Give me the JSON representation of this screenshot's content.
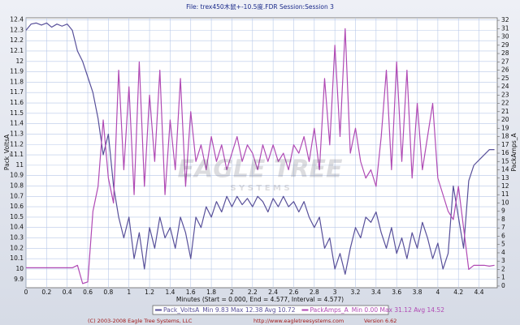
{
  "chart_data": {
    "type": "line",
    "title": "File: trex450木鼠+-10.5度.FDR   Session:Session 3",
    "x_label": "Minutes (Start = 0.000, End = 4.577, Interval = 4.577)",
    "y_label": "Pack_VoltsA",
    "y2_label": "PackAmps_A",
    "watermark": [
      "EAGLE TREE",
      "S Y S T E M S"
    ],
    "footer": [
      "(C) 2003-2008 Eagle Tree Systems, LLC",
      "http://www.eagletreesystems.com",
      "Version 6.62"
    ],
    "grid": true,
    "xlim": [
      0,
      4.577
    ],
    "ylim": [
      9.82,
      12.42
    ],
    "y2lim": [
      -0.2,
      32.3
    ],
    "xticks": [
      0,
      0.2,
      0.4,
      0.6,
      0.8,
      1,
      1.2,
      1.4,
      1.6,
      1.8,
      2,
      2.2,
      2.4,
      2.6,
      2.8,
      3,
      3.2,
      3.4,
      3.6,
      3.8,
      4,
      4.2,
      4.4
    ],
    "yticks": [
      9.9,
      10,
      10.1,
      10.2,
      10.3,
      10.4,
      10.5,
      10.6,
      10.7,
      10.8,
      10.9,
      11,
      11.1,
      11.2,
      11.3,
      11.4,
      11.5,
      11.6,
      11.7,
      11.8,
      11.9,
      12,
      12.1,
      12.2,
      12.3,
      12.4
    ],
    "y2ticks": [
      0,
      1,
      2,
      3,
      4,
      5,
      6,
      7,
      8,
      9,
      10,
      11,
      12,
      13,
      14,
      15,
      16,
      17,
      18,
      19,
      20,
      21,
      22,
      23,
      24,
      25,
      26,
      27,
      28,
      29,
      30,
      31,
      32
    ],
    "x": [
      0,
      0.05,
      0.1,
      0.15,
      0.2,
      0.25,
      0.3,
      0.35,
      0.4,
      0.45,
      0.5,
      0.55,
      0.6,
      0.65,
      0.7,
      0.75,
      0.8,
      0.85,
      0.9,
      0.95,
      1,
      1.05,
      1.1,
      1.15,
      1.2,
      1.25,
      1.3,
      1.35,
      1.4,
      1.45,
      1.5,
      1.55,
      1.6,
      1.65,
      1.7,
      1.75,
      1.8,
      1.85,
      1.9,
      1.95,
      2,
      2.05,
      2.1,
      2.15,
      2.2,
      2.25,
      2.3,
      2.35,
      2.4,
      2.45,
      2.5,
      2.55,
      2.6,
      2.65,
      2.7,
      2.75,
      2.8,
      2.85,
      2.9,
      2.95,
      3,
      3.05,
      3.1,
      3.15,
      3.2,
      3.25,
      3.3,
      3.35,
      3.4,
      3.45,
      3.5,
      3.55,
      3.6,
      3.65,
      3.7,
      3.75,
      3.8,
      3.85,
      3.9,
      3.95,
      4,
      4.05,
      4.1,
      4.15,
      4.2,
      4.25,
      4.3,
      4.35,
      4.4,
      4.45,
      4.5,
      4.55
    ],
    "series": [
      {
        "name": "Pack_VoltsA",
        "stats": "Min 9.83  Max 12.38  Avg 10.72",
        "color": "#58509a",
        "axis": "y",
        "values": [
          12.3,
          12.36,
          12.37,
          12.35,
          12.37,
          12.33,
          12.36,
          12.34,
          12.36,
          12.3,
          12.1,
          12.0,
          11.85,
          11.7,
          11.45,
          11.1,
          11.3,
          10.8,
          10.5,
          10.3,
          10.5,
          10.1,
          10.35,
          10.0,
          10.4,
          10.2,
          10.5,
          10.3,
          10.4,
          10.2,
          10.5,
          10.35,
          10.1,
          10.5,
          10.4,
          10.6,
          10.5,
          10.65,
          10.55,
          10.7,
          10.6,
          10.7,
          10.62,
          10.68,
          10.6,
          10.7,
          10.65,
          10.55,
          10.68,
          10.6,
          10.7,
          10.6,
          10.65,
          10.55,
          10.65,
          10.5,
          10.4,
          10.5,
          10.2,
          10.3,
          10.0,
          10.15,
          9.95,
          10.2,
          10.4,
          10.3,
          10.5,
          10.45,
          10.55,
          10.35,
          10.2,
          10.4,
          10.15,
          10.3,
          10.1,
          10.35,
          10.2,
          10.45,
          10.3,
          10.1,
          10.25,
          10.0,
          10.15,
          10.8,
          10.5,
          10.2,
          10.85,
          11.0,
          11.05,
          11.1,
          11.15,
          11.15
        ]
      },
      {
        "name": "PackAmps_A",
        "stats": "Min 0.00  Max 31.12  Avg 14.52",
        "color": "#b04ab4",
        "axis": "y2",
        "values": [
          2.2,
          2.2,
          2.2,
          2.2,
          2.2,
          2.2,
          2.2,
          2.2,
          2.2,
          2.2,
          2.5,
          0.3,
          0.5,
          9,
          12,
          20,
          13,
          10,
          26,
          14,
          24,
          11,
          27,
          12,
          23,
          15,
          26,
          11,
          20,
          14,
          25,
          12,
          21,
          15,
          17,
          14,
          18,
          15,
          17,
          14,
          16,
          18,
          15,
          17,
          16,
          14,
          17,
          15,
          17,
          15,
          16,
          14,
          17,
          16,
          18,
          15,
          19,
          14,
          25,
          17,
          29,
          18,
          31,
          16,
          19,
          15,
          13,
          14,
          12,
          18,
          26,
          14,
          27,
          15,
          26,
          13,
          22,
          14,
          18,
          22,
          13,
          11,
          9,
          8,
          12,
          7,
          2,
          2.5,
          2.5,
          2.5,
          2.4,
          2.5
        ]
      }
    ]
  }
}
